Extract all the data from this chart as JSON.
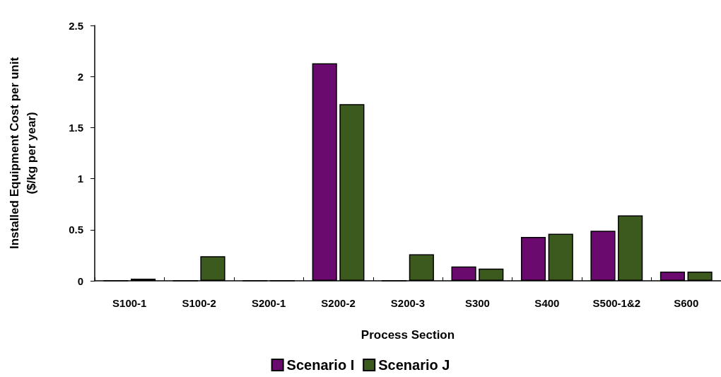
{
  "chart_data": {
    "type": "bar",
    "xlabel": "Process Section",
    "ylabel": "Installed Equipment Cost per unit\n($/kg per year)",
    "categories": [
      "S100-1",
      "S100-2",
      "S200-1",
      "S200-2",
      "S200-3",
      "S300",
      "S400",
      "S500-1&2",
      "S600"
    ],
    "series": [
      {
        "name": "Scenario I",
        "color": "#6a0a6e",
        "values": [
          0,
          0,
          0,
          2.13,
          0,
          0.14,
          0.43,
          0.49,
          0.09
        ]
      },
      {
        "name": "Scenario J",
        "color": "#3c5a1e",
        "values": [
          0.02,
          0.24,
          0,
          1.73,
          0.26,
          0.12,
          0.46,
          0.64,
          0.09
        ]
      }
    ],
    "ylim": [
      0,
      2.5
    ],
    "yticks": [
      0,
      0.5,
      1,
      1.5,
      2,
      2.5
    ],
    "grid": false,
    "legend": "bottom"
  }
}
